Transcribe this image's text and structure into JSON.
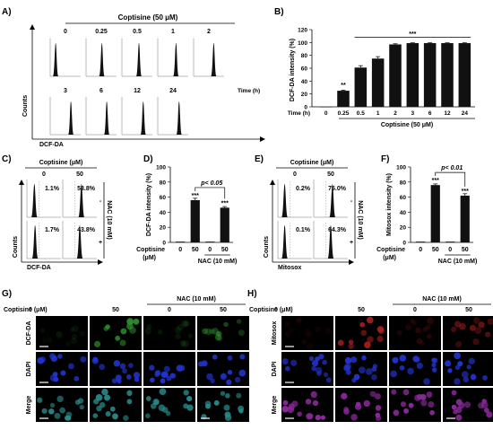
{
  "colors": {
    "bar": "#111111",
    "cell_green": "#2e8f2e",
    "cell_blue": "#2233cc",
    "cell_red": "#b32020",
    "cell_merge_b": "#2a8a8a",
    "cell_merge_h": "#8a2a9a",
    "micro_bg": "#000000"
  },
  "panelA": {
    "letter": "A)",
    "treatment": "Coptisine (50 μM)",
    "time_label": "Time (h)",
    "ylabel": "Counts",
    "xlabel": "DCF-DA",
    "labels_row1": [
      "0",
      "0.25",
      "0.5",
      "1",
      "2"
    ],
    "labels_row2": [
      "3",
      "6",
      "12",
      "24"
    ],
    "peaks_row1": [
      0.18,
      0.52,
      0.56,
      0.6,
      0.66
    ],
    "peaks_row2": [
      0.68,
      0.68,
      0.7,
      0.7
    ]
  },
  "panelB": {
    "letter": "B)",
    "chart_data": {
      "type": "bar",
      "categories": [
        "0",
        "0.25",
        "0.5",
        "1",
        "2",
        "3",
        "6",
        "12",
        "24"
      ],
      "values": [
        0,
        25,
        61,
        75,
        97,
        99,
        99,
        99,
        99
      ],
      "errors": [
        0,
        1,
        3,
        3,
        1,
        0.5,
        0.5,
        0.5,
        0.5
      ],
      "ylabel": "DCF-DA intensity (%)",
      "xlabel_left": "Time (h)",
      "xlabel_bottom": "Coptisine (50 μM)",
      "ylim": [
        0,
        120
      ],
      "yticks": [
        "0",
        "20",
        "40",
        "60",
        "80",
        "100",
        "120"
      ],
      "sig": [
        "",
        "**",
        "",
        "",
        "",
        "",
        "",
        "",
        ""
      ],
      "bracket_label": "***"
    }
  },
  "panelC": {
    "letter": "C)",
    "header": "Coptisine (μM)",
    "cols": [
      "0",
      "50"
    ],
    "pcts": [
      "1.1%",
      "53.8%",
      "1.7%",
      "43.8%"
    ],
    "side_label": "NAC (10 mM)",
    "side_signs": [
      "-",
      "+"
    ],
    "ylabel": "Counts",
    "xlabel": "DCF-DA",
    "peaks": [
      0.22,
      0.55,
      0.24,
      0.5
    ]
  },
  "panelD": {
    "letter": "D)",
    "chart_data": {
      "type": "bar",
      "categories": [
        "0",
        "50",
        "0",
        "50"
      ],
      "values": [
        1,
        56,
        1,
        46
      ],
      "errors": [
        0,
        2.5,
        0,
        1.5
      ],
      "ylabel": "DCF-DA intensity (%)",
      "ylim": [
        0,
        100
      ],
      "yticks": [
        "0",
        "20",
        "40",
        "60",
        "80",
        "100"
      ],
      "sig": [
        "",
        "***",
        "",
        "***"
      ],
      "pval": "p< 0.05",
      "row_label": "Coptisine",
      "row_label2": "(μM)",
      "nac_label": "NAC (10 mM)"
    }
  },
  "panelE": {
    "letter": "E)",
    "header": "Coptisine (μM)",
    "cols": [
      "0",
      "50"
    ],
    "pcts": [
      "0.2%",
      "75.0%",
      "0.1%",
      "64.3%"
    ],
    "side_label": "NAC (10 mM)",
    "side_signs": [
      "-",
      "+"
    ],
    "ylabel": "Counts",
    "xlabel": "Mitosox",
    "peaks": [
      0.2,
      0.55,
      0.2,
      0.5
    ]
  },
  "panelF": {
    "letter": "F)",
    "chart_data": {
      "type": "bar",
      "categories": [
        "0",
        "50",
        "0",
        "50"
      ],
      "values": [
        1,
        76,
        1,
        62
      ],
      "errors": [
        0,
        1.5,
        0,
        2.5
      ],
      "ylabel": "Mitosox intensity (%)",
      "ylim": [
        0,
        100
      ],
      "yticks": [
        "0",
        "20",
        "40",
        "60",
        "80",
        "100"
      ],
      "sig": [
        "",
        "***",
        "",
        "***"
      ],
      "pval": "p< 0.01",
      "row_label": "Coptisine",
      "row_label2": "(μM)",
      "nac_label": "NAC (10 mM)"
    }
  },
  "panelG": {
    "letter": "G)",
    "header": "Coptisine (μM)",
    "cols": [
      "0",
      "50",
      "0",
      "50"
    ],
    "nac_label": "NAC (10 mM)",
    "rows": [
      "DCF-DA",
      "DAPI",
      "Merge"
    ]
  },
  "panelH": {
    "letter": "H)",
    "header": "Coptisine (μM)",
    "cols": [
      "0",
      "50",
      "0",
      "50"
    ],
    "nac_label": "NAC (10 mM)",
    "rows": [
      "Mitosox",
      "DAPI",
      "Merge"
    ]
  }
}
